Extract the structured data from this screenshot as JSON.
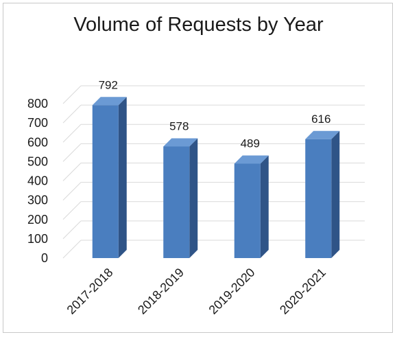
{
  "chart_data": {
    "type": "bar",
    "title": "Volume of Requests by Year",
    "categories": [
      "2017-2018",
      "2018-2019",
      "2019-2020",
      "2020-2021"
    ],
    "values": [
      792,
      578,
      489,
      616
    ],
    "ylim": [
      0,
      800
    ],
    "yticks": [
      0,
      100,
      200,
      300,
      400,
      500,
      600,
      700,
      800
    ],
    "grid": true,
    "legend": "none",
    "style": "3d-column",
    "colors": {
      "front": "#4a7ebf",
      "side": "#2f5487",
      "top": "#6b9ad4",
      "grid": "#d9d9d9"
    }
  }
}
